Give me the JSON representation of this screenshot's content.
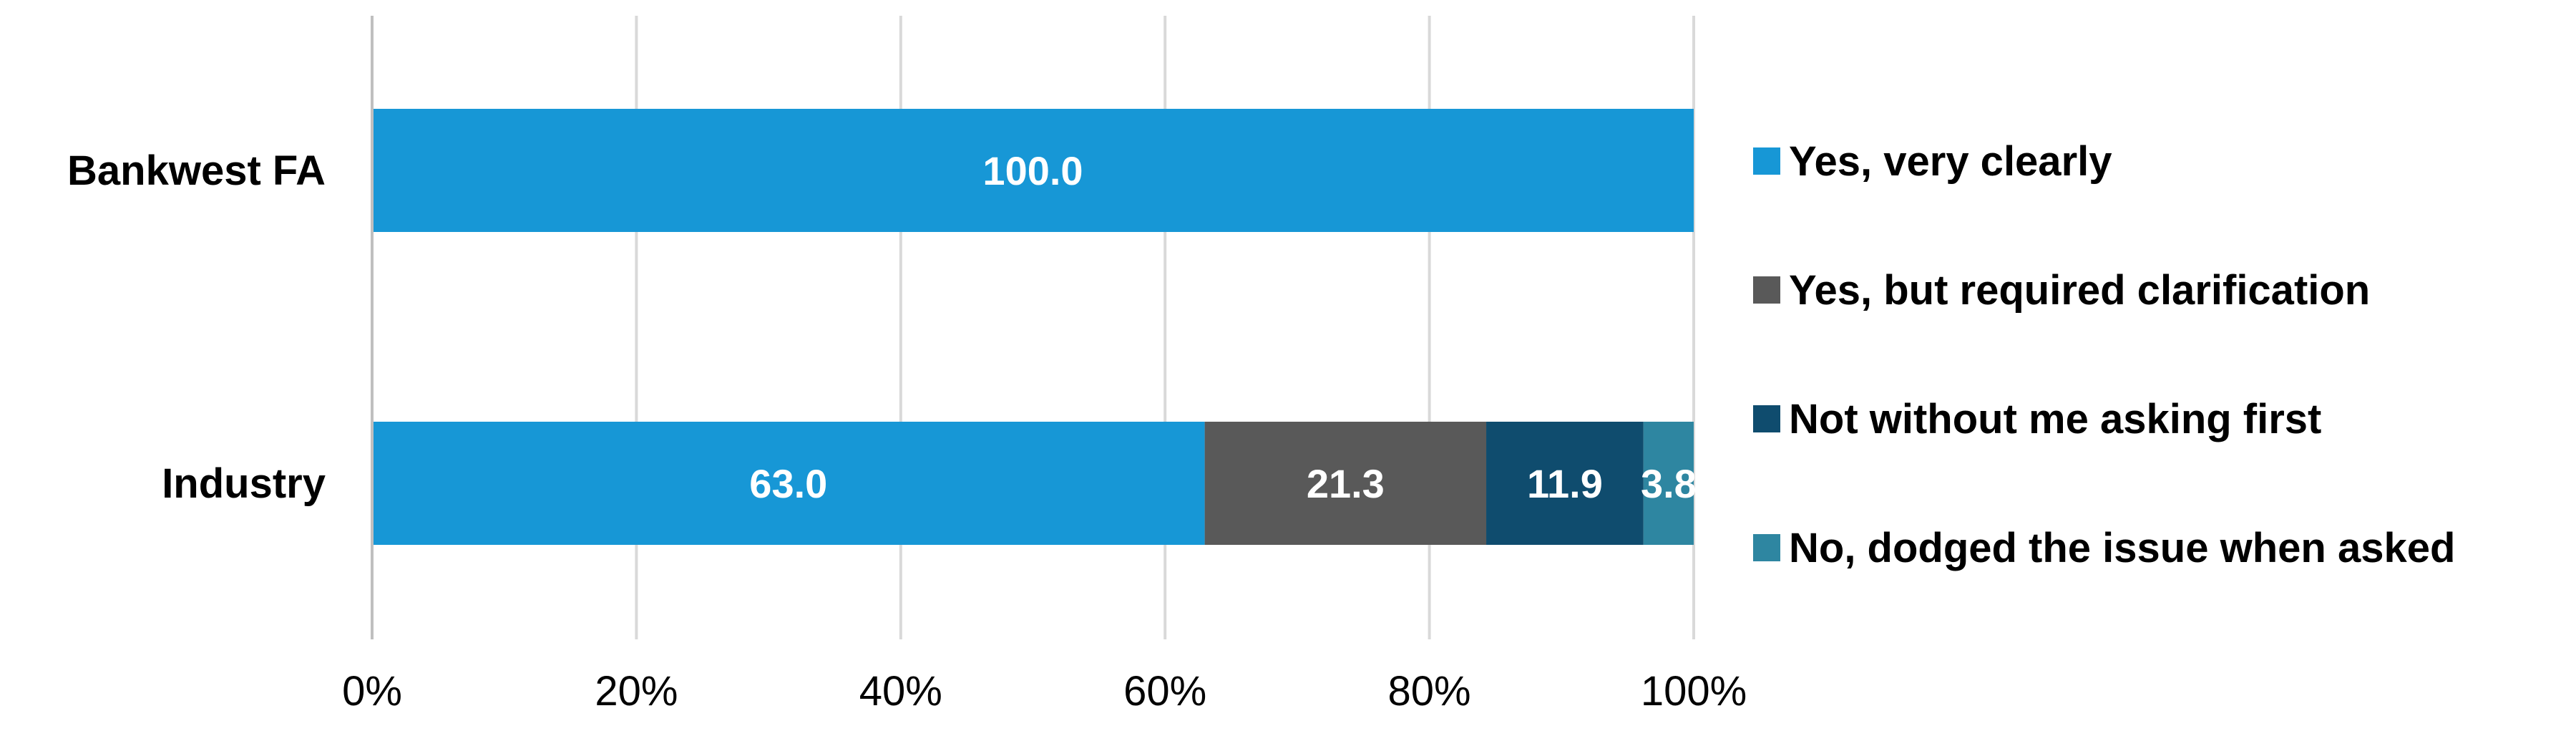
{
  "chart_data": {
    "type": "bar",
    "orientation": "horizontal",
    "stacked": true,
    "categories": [
      "Bankwest FA",
      "Industry"
    ],
    "series": [
      {
        "name": "Yes, very clearly",
        "color": "#1797d6",
        "values": [
          100.0,
          63.0
        ],
        "labels": [
          "100.0",
          "63.0"
        ]
      },
      {
        "name": "Yes, but required clarification",
        "color": "#595959",
        "values": [
          0,
          21.3
        ],
        "labels": [
          "",
          "21.3"
        ]
      },
      {
        "name": "Not without me asking first",
        "color": "#0f4c6e",
        "values": [
          0,
          11.9
        ],
        "labels": [
          "",
          "11.9"
        ]
      },
      {
        "name": "No, dodged the issue when asked",
        "color": "#2e86a1",
        "values": [
          0,
          3.8
        ],
        "labels": [
          "",
          "3.8"
        ]
      }
    ],
    "xlim": [
      0,
      100
    ],
    "xticks": [
      0,
      20,
      40,
      60,
      80,
      100
    ],
    "xtick_labels": [
      "0%",
      "20%",
      "40%",
      "60%",
      "80%",
      "100%"
    ],
    "title": "",
    "xlabel": "",
    "ylabel": "",
    "grid": true,
    "legend_position": "right"
  }
}
